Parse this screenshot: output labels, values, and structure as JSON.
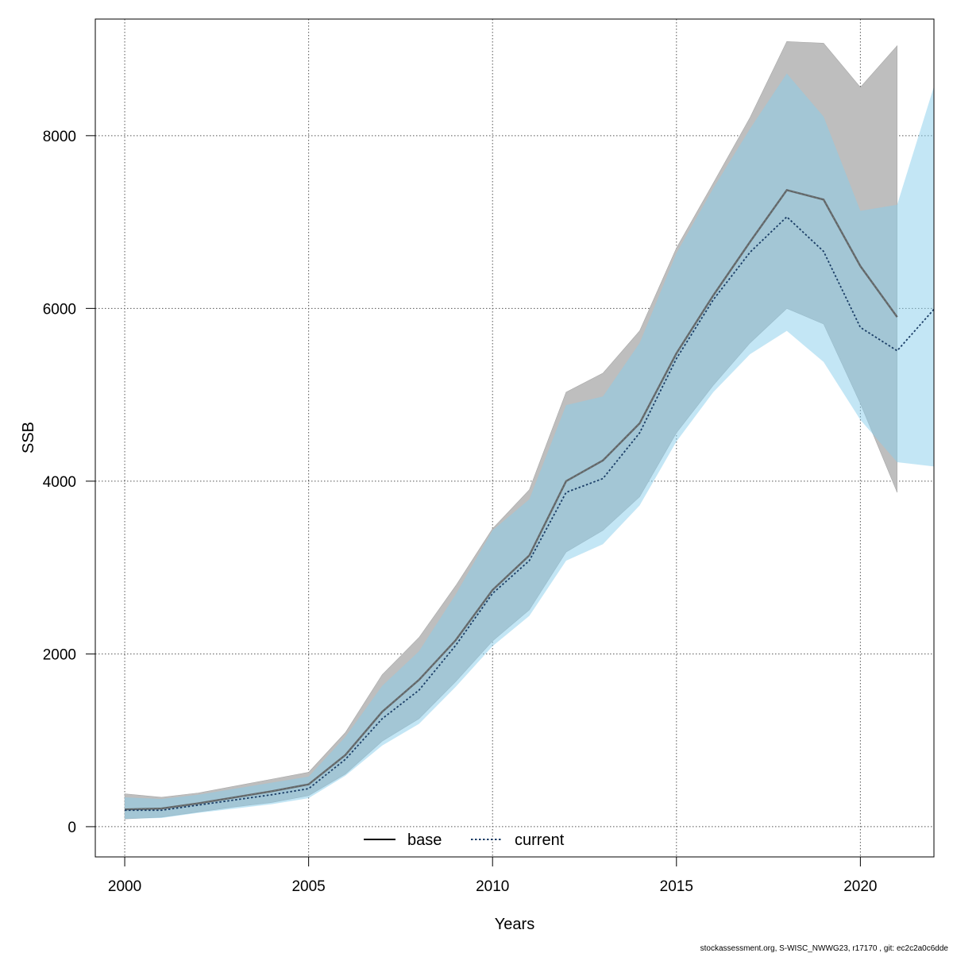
{
  "chart_data": {
    "type": "line",
    "title": "",
    "xlabel": "Years",
    "ylabel": "SSB",
    "xlim": [
      1999.2,
      2022
    ],
    "ylim": [
      -350,
      9350
    ],
    "x_ticks": [
      2000,
      2005,
      2010,
      2015,
      2020
    ],
    "y_ticks": [
      0,
      2000,
      4000,
      6000,
      8000
    ],
    "grid": true,
    "legend": {
      "position": "bottom-center",
      "entries": [
        "base",
        "current"
      ]
    },
    "series": [
      {
        "name": "base",
        "line_color": "#555555",
        "band_color": "#bebebe",
        "x": [
          2000,
          2001,
          2002,
          2003,
          2004,
          2005,
          2006,
          2007,
          2008,
          2009,
          2010,
          2011,
          2012,
          2013,
          2014,
          2015,
          2016,
          2017,
          2018,
          2019,
          2020,
          2021
        ],
        "values": [
          200,
          210,
          270,
          340,
          410,
          490,
          830,
          1330,
          1700,
          2160,
          2740,
          3140,
          4000,
          4240,
          4670,
          5480,
          6150,
          6770,
          7370,
          7260,
          6490,
          5900
        ],
        "lower": [
          90,
          110,
          170,
          230,
          280,
          360,
          610,
          990,
          1250,
          1680,
          2150,
          2510,
          3180,
          3430,
          3820,
          4560,
          5110,
          5600,
          6000,
          5820,
          4900,
          3870
        ],
        "upper": [
          380,
          340,
          390,
          470,
          550,
          630,
          1090,
          1760,
          2190,
          2790,
          3450,
          3900,
          5030,
          5250,
          5740,
          6700,
          7450,
          8210,
          9090,
          9070,
          8560,
          9040
        ]
      },
      {
        "name": "current",
        "line_color": "#1a3d66",
        "band_color": "#87ceeb",
        "x": [
          2000,
          2001,
          2002,
          2003,
          2004,
          2005,
          2006,
          2007,
          2008,
          2009,
          2010,
          2011,
          2012,
          2013,
          2014,
          2015,
          2016,
          2017,
          2018,
          2019,
          2020,
          2021,
          2022
        ],
        "values": [
          190,
          190,
          250,
          310,
          370,
          440,
          780,
          1250,
          1580,
          2100,
          2700,
          3080,
          3870,
          4030,
          4560,
          5420,
          6100,
          6650,
          7060,
          6660,
          5780,
          5510,
          5990
        ],
        "lower": [
          90,
          100,
          160,
          210,
          260,
          330,
          590,
          940,
          1190,
          1620,
          2090,
          2440,
          3080,
          3270,
          3720,
          4460,
          5030,
          5470,
          5740,
          5380,
          4710,
          4220,
          4170
        ],
        "upper": [
          340,
          320,
          370,
          440,
          510,
          580,
          1040,
          1630,
          2030,
          2690,
          3430,
          3790,
          4880,
          4980,
          5600,
          6640,
          7390,
          8080,
          8720,
          8220,
          7130,
          7200,
          8570
        ]
      }
    ]
  },
  "footer": "stockassessment.org, S-WISC_NWWG23, r17170 , git: ec2c2a0c6dde"
}
